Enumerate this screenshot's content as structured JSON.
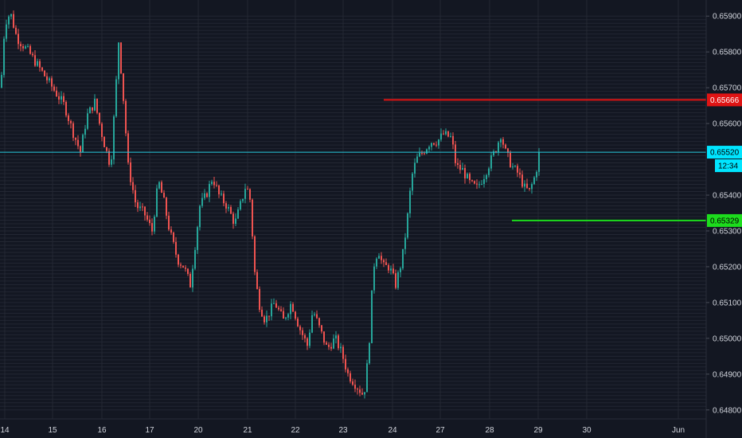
{
  "chart_data": {
    "type": "candlestick",
    "title": "",
    "xlabel": "",
    "ylabel": "",
    "colors": {
      "background": "#131722",
      "grid": "#232733",
      "up": "#26a69a",
      "down": "#ef5350",
      "axis_text": "#d1d4dc",
      "resistance_line": "#e01414",
      "support_line": "#1ddc1d",
      "price_line": "#26c6da",
      "price_tag": "#00e5ff"
    },
    "grid": true,
    "ylim": [
      0.64775,
      0.65945
    ],
    "y_ticks": [
      "0.65900",
      "0.65800",
      "0.65700",
      "0.65600",
      "0.65400",
      "0.65300",
      "0.65200",
      "0.65100",
      "0.65000",
      "0.64900",
      "0.64800"
    ],
    "x_ticks": [
      "14",
      "15",
      "16",
      "17",
      "20",
      "21",
      "22",
      "23",
      "24",
      "27",
      "28",
      "29",
      "30",
      "Jun"
    ],
    "price_path": [
      [
        0,
        0.657
      ],
      [
        5,
        0.6588
      ],
      [
        12,
        0.6591
      ],
      [
        20,
        0.6584
      ],
      [
        35,
        0.658
      ],
      [
        50,
        0.6575
      ],
      [
        65,
        0.657
      ],
      [
        80,
        0.6565
      ],
      [
        90,
        0.6558
      ],
      [
        100,
        0.6552
      ],
      [
        108,
        0.6562
      ],
      [
        118,
        0.6566
      ],
      [
        128,
        0.6556
      ],
      [
        138,
        0.6548
      ],
      [
        144,
        0.6568
      ],
      [
        148,
        0.6583
      ],
      [
        153,
        0.657
      ],
      [
        160,
        0.6548
      ],
      [
        170,
        0.6537
      ],
      [
        180,
        0.6535
      ],
      [
        190,
        0.653
      ],
      [
        198,
        0.6544
      ],
      [
        205,
        0.6538
      ],
      [
        212,
        0.653
      ],
      [
        222,
        0.6522
      ],
      [
        230,
        0.652
      ],
      [
        238,
        0.6515
      ],
      [
        244,
        0.6526
      ],
      [
        250,
        0.6537
      ],
      [
        258,
        0.654
      ],
      [
        266,
        0.6545
      ],
      [
        274,
        0.654
      ],
      [
        284,
        0.6537
      ],
      [
        294,
        0.6532
      ],
      [
        302,
        0.6538
      ],
      [
        308,
        0.6543
      ],
      [
        314,
        0.6538
      ],
      [
        318,
        0.652
      ],
      [
        324,
        0.651
      ],
      [
        332,
        0.6505
      ],
      [
        344,
        0.651
      ],
      [
        355,
        0.6505
      ],
      [
        365,
        0.651
      ],
      [
        375,
        0.6503
      ],
      [
        385,
        0.6498
      ],
      [
        392,
        0.6508
      ],
      [
        400,
        0.6503
      ],
      [
        410,
        0.6497
      ],
      [
        420,
        0.65
      ],
      [
        428,
        0.6496
      ],
      [
        436,
        0.649
      ],
      [
        446,
        0.6487
      ],
      [
        456,
        0.6484
      ],
      [
        462,
        0.6496
      ],
      [
        468,
        0.652
      ],
      [
        474,
        0.6525
      ],
      [
        480,
        0.652
      ],
      [
        488,
        0.652
      ],
      [
        496,
        0.6515
      ],
      [
        504,
        0.6522
      ],
      [
        510,
        0.6532
      ],
      [
        516,
        0.6545
      ],
      [
        522,
        0.655
      ],
      [
        530,
        0.6552
      ],
      [
        540,
        0.6555
      ],
      [
        548,
        0.6555
      ],
      [
        556,
        0.6557
      ],
      [
        566,
        0.6556
      ],
      [
        572,
        0.6548
      ],
      [
        580,
        0.6547
      ],
      [
        590,
        0.6543
      ],
      [
        598,
        0.6542
      ],
      [
        606,
        0.6545
      ],
      [
        614,
        0.6549
      ],
      [
        622,
        0.6553
      ],
      [
        628,
        0.6557
      ],
      [
        634,
        0.6552
      ],
      [
        642,
        0.6548
      ],
      [
        650,
        0.6546
      ],
      [
        658,
        0.6542
      ],
      [
        664,
        0.6541
      ],
      [
        672,
        0.6546
      ],
      [
        676,
        0.6552
      ]
    ],
    "horizontal_lines": [
      {
        "name": "resistance-line",
        "value": 0.65666,
        "label": "0.65666",
        "from": "24"
      },
      {
        "name": "support-line",
        "value": 0.65329,
        "label": "0.65329",
        "from": "28"
      }
    ],
    "last_price": {
      "value": 0.6552,
      "label": "0.65520",
      "countdown": "12:34"
    }
  }
}
